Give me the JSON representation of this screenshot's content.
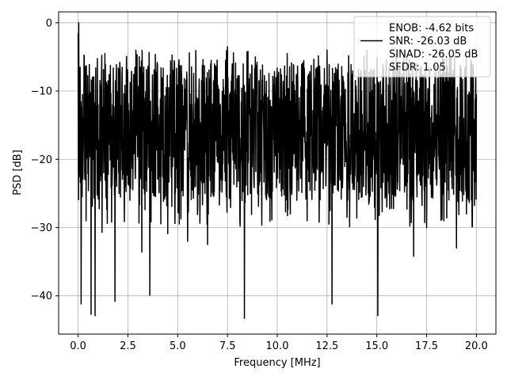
{
  "chart_data": {
    "type": "line",
    "xlabel": "Frequency [MHz]",
    "ylabel": "PSD [dB]",
    "xlim": [
      -0.98,
      20.98
    ],
    "ylim": [
      -45.6,
      1.6
    ],
    "xticks": [
      0.0,
      2.5,
      5.0,
      7.5,
      10.0,
      12.5,
      15.0,
      17.5,
      20.0
    ],
    "xtick_labels": [
      "0.0",
      "2.5",
      "5.0",
      "7.5",
      "10.0",
      "12.5",
      "15.0",
      "17.5",
      "20.0"
    ],
    "yticks": [
      0,
      -10,
      -20,
      -30,
      -40
    ],
    "ytick_labels": [
      "0",
      "−10",
      "−20",
      "−30",
      "−40"
    ],
    "grid": true,
    "legend_placement": "top-right",
    "legend": [
      {
        "text": "ENOB: -4.62 bits",
        "marker": "none"
      },
      {
        "text": "SNR: -26.03 dB",
        "marker": "line"
      },
      {
        "text": "SINAD: -26.05 dB",
        "marker": "none"
      },
      {
        "text": "SFDR: 1.05",
        "marker": "none"
      }
    ],
    "series": [
      {
        "color": "#000000",
        "description": "noise-like PSD trace, band between about -30 and -5 dB",
        "x_range": [
          0.0,
          20.0
        ],
        "points": [
          [
            0.0,
            -1.5
          ],
          [
            0.03,
            0.0
          ],
          [
            0.06,
            -13.0
          ],
          [
            0.1,
            -6.5
          ],
          [
            0.15,
            -41.2
          ],
          [
            0.25,
            -20.0
          ],
          [
            0.4,
            -29.0
          ],
          [
            0.55,
            -11.0
          ],
          [
            0.65,
            -42.7
          ],
          [
            0.75,
            -19.0
          ],
          [
            0.85,
            -42.9
          ],
          [
            1.0,
            -12.0
          ],
          [
            1.2,
            -30.7
          ],
          [
            1.5,
            -8.5
          ],
          [
            1.85,
            -40.8
          ],
          [
            2.2,
            -9.0
          ],
          [
            2.6,
            -26.0
          ],
          [
            3.2,
            -33.6
          ],
          [
            3.6,
            -39.9
          ],
          [
            4.2,
            -8.0
          ],
          [
            4.5,
            -30.9
          ],
          [
            5.2,
            -8.0
          ],
          [
            5.5,
            -32.0
          ],
          [
            6.5,
            -32.5
          ],
          [
            7.5,
            -3.5
          ],
          [
            8.35,
            -43.3
          ],
          [
            8.9,
            -5.0
          ],
          [
            9.5,
            -25.0
          ],
          [
            10.5,
            -4.5
          ],
          [
            11.5,
            -29.0
          ],
          [
            12.5,
            -4.0
          ],
          [
            12.75,
            -41.2
          ],
          [
            13.5,
            -28.5
          ],
          [
            14.5,
            -4.0
          ],
          [
            15.05,
            -42.9
          ],
          [
            15.5,
            -27.0
          ],
          [
            16.5,
            -5.0
          ],
          [
            16.85,
            -34.2
          ],
          [
            17.5,
            -30.0
          ],
          [
            18.5,
            -5.0
          ],
          [
            19.0,
            -33.0
          ],
          [
            19.5,
            -28.0
          ],
          [
            20.0,
            -10.5
          ]
        ]
      }
    ]
  }
}
